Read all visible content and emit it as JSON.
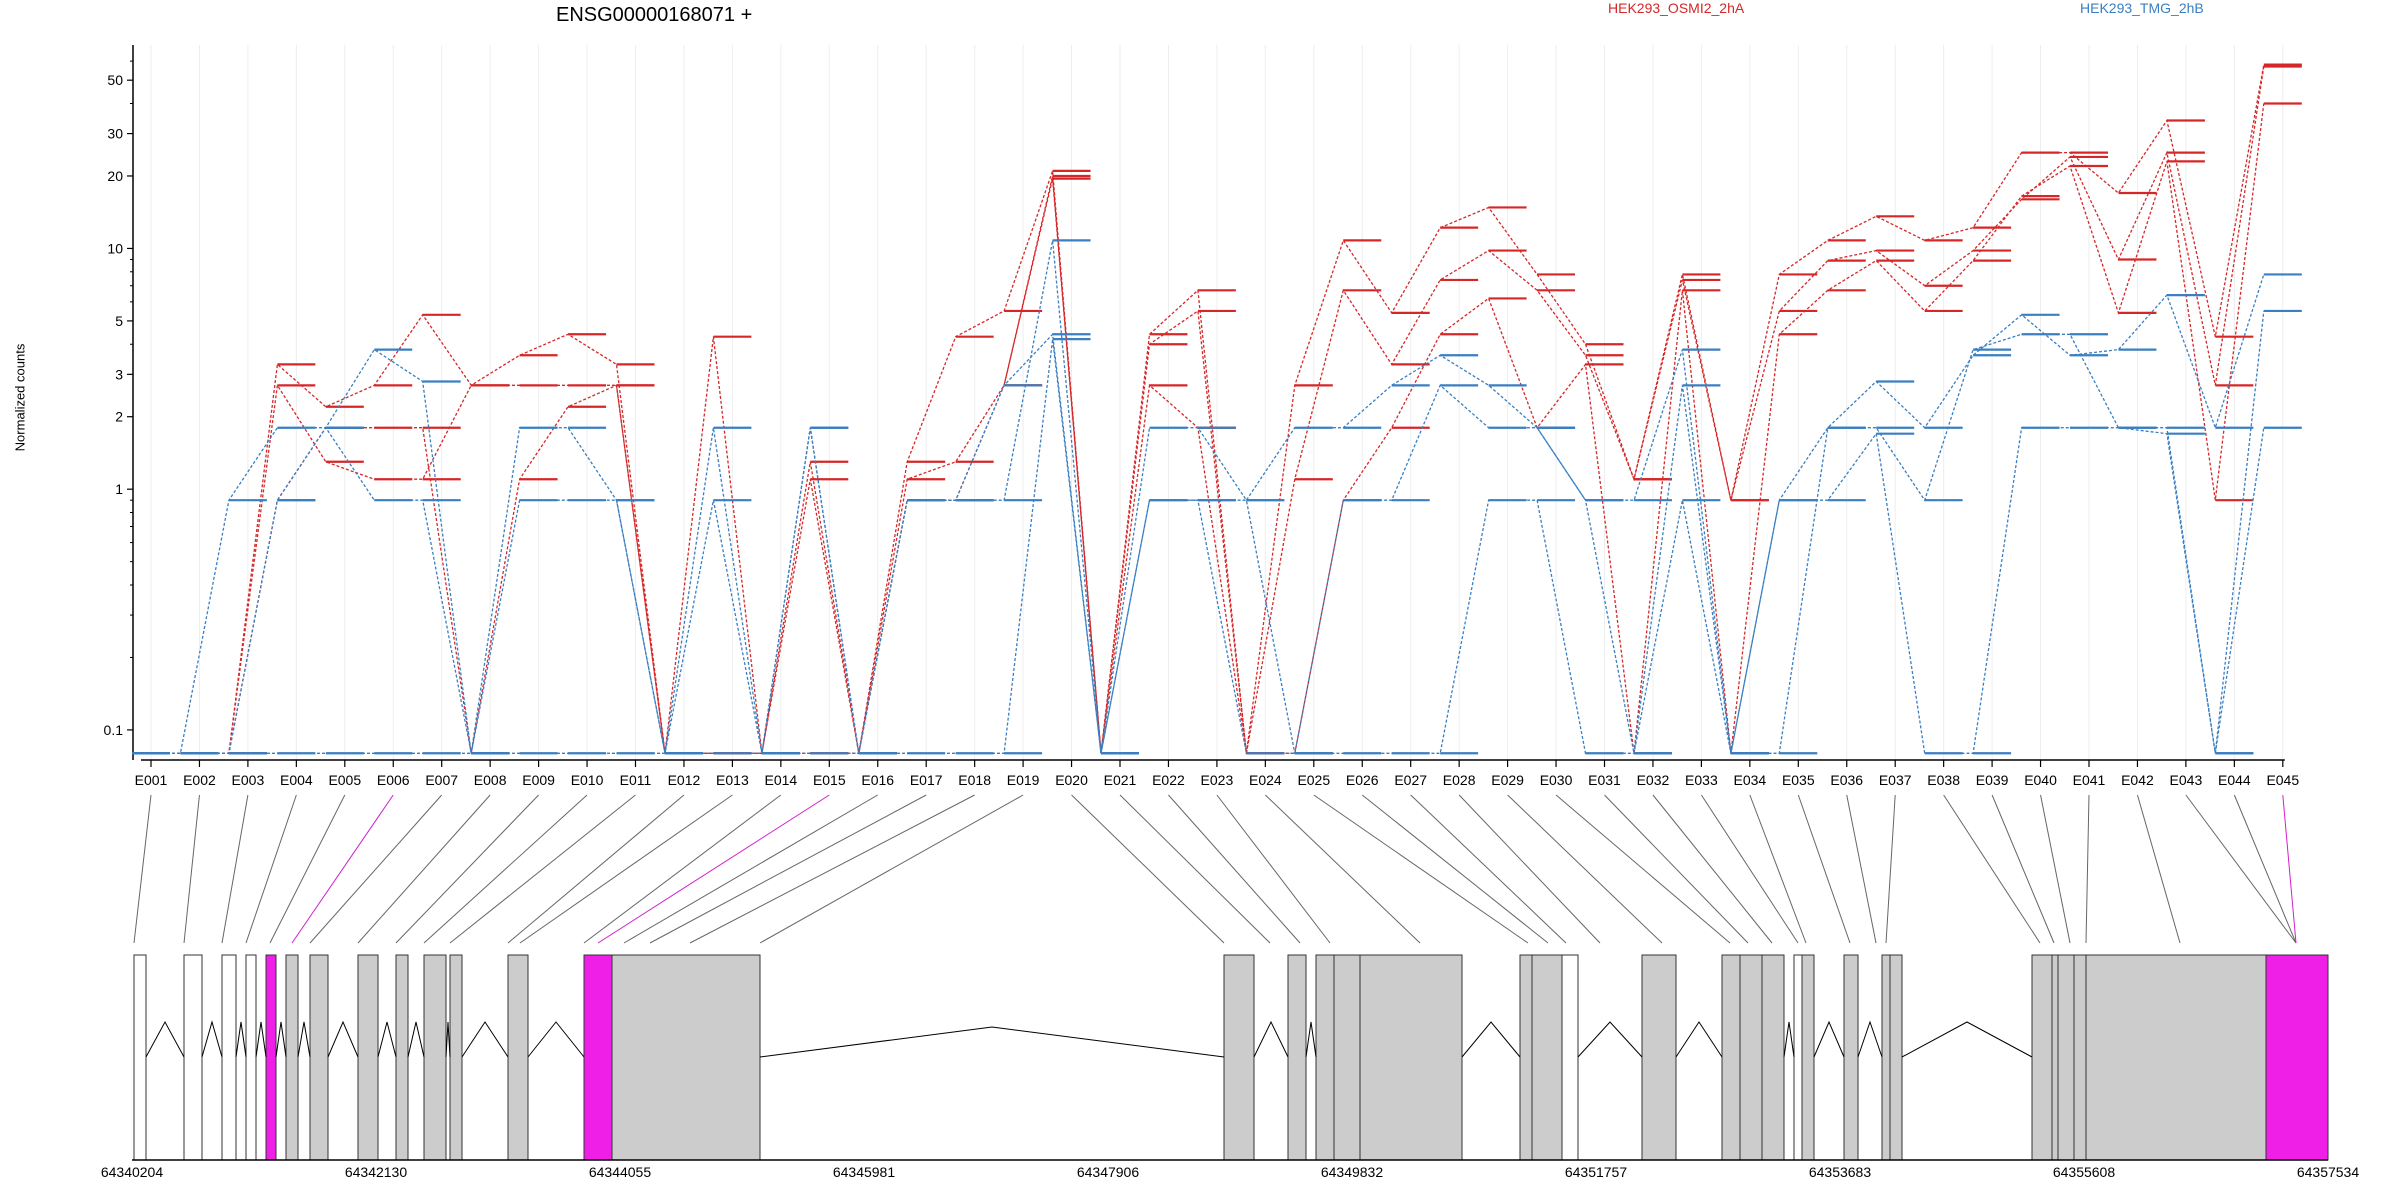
{
  "chart_data": {
    "type": "line",
    "title": "ENSG00000168071 +",
    "ylabel": "Normalized counts",
    "yscale": "log",
    "ylim": [
      0.075,
      70
    ],
    "yticks": [
      0.1,
      1,
      2,
      3,
      5,
      10,
      20,
      30,
      50
    ],
    "ytick_labels": [
      "0.1",
      "1",
      "2",
      "3",
      "5",
      "10",
      "20",
      "30",
      "50"
    ],
    "legend": [
      {
        "label": "HEK293_OSMI2_2hA",
        "color": "#d62728"
      },
      {
        "label": "HEK293_TMG_2hB",
        "color": "#3a7fc1"
      }
    ],
    "categories": [
      "E001",
      "E002",
      "E003",
      "E004",
      "E005",
      "E006",
      "E007",
      "E008",
      "E009",
      "E010",
      "E011",
      "E012",
      "E013",
      "E014",
      "E015",
      "E016",
      "E017",
      "E018",
      "E019",
      "E020",
      "E021",
      "E022",
      "E023",
      "E024",
      "E025",
      "E026",
      "E027",
      "E028",
      "E029",
      "E030",
      "E031",
      "E032",
      "E033",
      "E034",
      "E035",
      "E036",
      "E037",
      "E038",
      "E039",
      "E040",
      "E041",
      "E042",
      "E043",
      "E044",
      "E045"
    ],
    "series": [
      {
        "group": "red",
        "values": [
          0.08,
          0.08,
          0.08,
          3.3,
          2.2,
          2.7,
          5.3,
          2.7,
          3.6,
          4.4,
          3.3,
          0.08,
          4.3,
          0.08,
          1.3,
          0.08,
          1.3,
          4.3,
          5.5,
          21,
          0.08,
          4.4,
          6.7,
          0.08,
          2.7,
          10.8,
          5.4,
          12.2,
          14.8,
          7.8,
          4.0,
          1.1,
          7.8,
          0.9,
          7.8,
          10.8,
          13.6,
          10.8,
          12.2,
          25,
          25,
          17,
          34,
          4.3,
          58
        ]
      },
      {
        "group": "red",
        "values": [
          0.08,
          0.08,
          0.08,
          2.7,
          1.3,
          1.1,
          1.1,
          2.7,
          2.7,
          2.7,
          2.7,
          0.08,
          0.08,
          0.08,
          1.1,
          0.08,
          1.1,
          1.3,
          2.7,
          20,
          0.08,
          4.0,
          5.5,
          0.08,
          1.1,
          6.7,
          3.3,
          7.4,
          9.8,
          6.7,
          3.6,
          1.1,
          7.4,
          0.9,
          5.5,
          8.9,
          9.8,
          7.0,
          9.8,
          16,
          24,
          9,
          25,
          2.7,
          57
        ]
      },
      {
        "group": "red",
        "values": [
          0.08,
          0.08,
          0.08,
          0.9,
          1.8,
          1.8,
          1.8,
          0.08,
          1.1,
          2.2,
          2.7,
          0.08,
          0.08,
          0.08,
          0.08,
          0.08,
          0.9,
          0.9,
          2.7,
          19.5,
          0.08,
          2.7,
          1.8,
          0.08,
          0.08,
          0.9,
          1.8,
          4.4,
          6.2,
          1.8,
          3.3,
          0.08,
          6.7,
          0.08,
          4.4,
          6.7,
          8.9,
          5.5,
          8.9,
          16.5,
          22,
          5.4,
          23,
          0.9,
          40
        ]
      },
      {
        "group": "blue",
        "values": [
          0.08,
          0.08,
          0.9,
          1.8,
          1.8,
          3.8,
          2.8,
          0.08,
          1.8,
          1.8,
          0.9,
          0.08,
          1.8,
          0.08,
          1.8,
          0.08,
          0.9,
          0.9,
          0.9,
          10.8,
          0.08,
          1.8,
          1.8,
          0.9,
          1.8,
          1.8,
          2.7,
          3.6,
          2.7,
          1.8,
          0.9,
          0.9,
          3.8,
          0.08,
          0.9,
          1.8,
          2.8,
          1.8,
          3.6,
          5.3,
          3.6,
          3.8,
          6.4,
          1.8,
          7.8
        ]
      },
      {
        "group": "blue",
        "values": [
          0.08,
          0.08,
          0.08,
          0.9,
          1.8,
          0.9,
          0.9,
          0.08,
          0.9,
          0.9,
          0.9,
          0.08,
          0.9,
          0.08,
          1.8,
          0.08,
          0.9,
          0.9,
          2.7,
          4.4,
          0.08,
          0.9,
          0.9,
          0.9,
          0.08,
          0.9,
          0.9,
          2.7,
          1.8,
          1.8,
          0.9,
          0.08,
          2.7,
          0.08,
          0.08,
          1.8,
          1.8,
          0.9,
          3.8,
          4.4,
          4.4,
          1.8,
          1.8,
          0.08,
          5.5
        ]
      },
      {
        "group": "blue",
        "values": [
          0.08,
          0.08,
          0.08,
          0.08,
          0.08,
          0.08,
          0.08,
          0.08,
          0.08,
          0.08,
          0.08,
          0.08,
          0.08,
          0.08,
          0.08,
          0.08,
          0.08,
          0.08,
          0.08,
          4.2,
          0.08,
          0.9,
          0.9,
          0.08,
          0.08,
          0.08,
          0.08,
          0.08,
          0.9,
          0.9,
          0.08,
          0.08,
          0.9,
          0.08,
          0.9,
          0.9,
          1.7,
          0.08,
          0.08,
          1.8,
          1.8,
          1.8,
          1.7,
          0.08,
          1.8
        ]
      }
    ],
    "gene_model": {
      "coordinate_labels": [
        "64340204",
        "64342130",
        "64344055",
        "64345981",
        "64347906",
        "64349832",
        "64351757",
        "64353683",
        "64355608",
        "64357534"
      ],
      "highlighted_exons": [
        "E006",
        "E015",
        "E045"
      ]
    }
  }
}
